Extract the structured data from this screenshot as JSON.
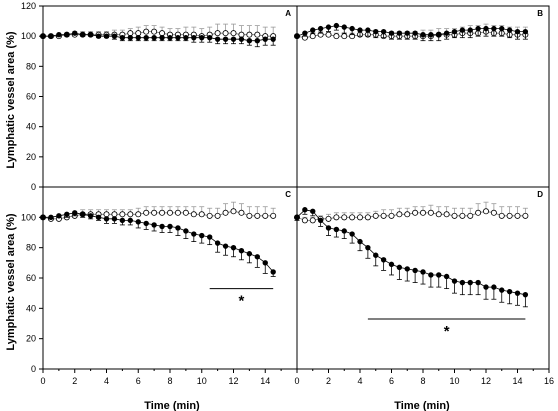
{
  "chart_data": [
    {
      "panel": "A",
      "type": "scatter",
      "ylabel": "Lymphatic vessel area (%)",
      "xlabel": "",
      "xlim": [
        0,
        16
      ],
      "ylim": [
        0,
        120
      ],
      "xticks": [],
      "yticks": [
        0,
        20,
        40,
        60,
        80,
        100,
        120
      ],
      "x": [
        0,
        0.5,
        1,
        1.5,
        2,
        2.5,
        3,
        3.5,
        4,
        4.5,
        5,
        5.5,
        6,
        6.5,
        7,
        7.5,
        8,
        8.5,
        9,
        9.5,
        10,
        10.5,
        11,
        11.5,
        12,
        12.5,
        13,
        13.5,
        14,
        14.5
      ],
      "series": [
        {
          "style": "filled",
          "values": [
            100,
            100,
            101,
            101,
            102,
            101,
            101,
            100,
            100,
            100,
            99,
            99,
            99,
            99,
            99,
            99,
            99,
            99,
            99,
            99,
            99,
            99,
            98,
            98,
            98,
            98,
            97,
            97,
            98,
            98
          ],
          "err": [
            1,
            1,
            1,
            1,
            1,
            1,
            1,
            1,
            1,
            2,
            2,
            2,
            2,
            2,
            2,
            2,
            2,
            2,
            2,
            3,
            3,
            3,
            3,
            3,
            3,
            3,
            3,
            4,
            4,
            4
          ]
        },
        {
          "style": "open",
          "values": [
            100,
            100,
            100,
            101,
            101,
            101,
            101,
            101,
            101,
            101,
            101,
            102,
            102,
            103,
            103,
            102,
            101,
            101,
            101,
            101,
            100,
            101,
            102,
            102,
            102,
            101,
            101,
            101,
            100,
            100
          ],
          "err": [
            1,
            1,
            1,
            1,
            2,
            2,
            2,
            2,
            2,
            3,
            3,
            3,
            4,
            4,
            4,
            4,
            4,
            4,
            5,
            5,
            5,
            5,
            6,
            6,
            6,
            6,
            6,
            6,
            6,
            6
          ]
        }
      ],
      "significance": null
    },
    {
      "panel": "B",
      "type": "scatter",
      "ylabel": "",
      "xlabel": "",
      "xlim": [
        0,
        16
      ],
      "ylim": [
        0,
        120
      ],
      "xticks": [],
      "yticks": [],
      "x": [
        0,
        0.5,
        1,
        1.5,
        2,
        2.5,
        3,
        3.5,
        4,
        4.5,
        5,
        5.5,
        6,
        6.5,
        7,
        7.5,
        8,
        8.5,
        9,
        9.5,
        10,
        10.5,
        11,
        11.5,
        12,
        12.5,
        13,
        13.5,
        14,
        14.5
      ],
      "series": [
        {
          "style": "filled",
          "values": [
            100,
            102,
            104,
            105,
            106,
            107,
            106,
            105,
            104,
            104,
            103,
            103,
            102,
            102,
            102,
            102,
            101,
            101,
            101,
            102,
            103,
            104,
            104,
            105,
            105,
            105,
            105,
            104,
            103,
            103
          ],
          "err": [
            1,
            2,
            2,
            3,
            3,
            3,
            4,
            4,
            4,
            4,
            4,
            4,
            4,
            4,
            4,
            4,
            4,
            4,
            4,
            4,
            4,
            5,
            5,
            5,
            5,
            5,
            5,
            5,
            5,
            5
          ]
        },
        {
          "style": "open",
          "values": [
            100,
            99,
            100,
            101,
            101,
            100,
            100,
            100,
            101,
            101,
            101,
            100,
            100,
            100,
            100,
            100,
            100,
            100,
            101,
            101,
            101,
            102,
            102,
            102,
            103,
            102,
            102,
            101,
            101,
            101
          ],
          "err": [
            1,
            1,
            2,
            2,
            2,
            2,
            2,
            2,
            3,
            3,
            3,
            3,
            3,
            3,
            3,
            3,
            4,
            4,
            4,
            4,
            4,
            4,
            5,
            5,
            5,
            5,
            5,
            5,
            5,
            5
          ]
        }
      ],
      "significance": null
    },
    {
      "panel": "C",
      "type": "scatter",
      "ylabel": "Lymphatic vessel area (%)",
      "xlabel": "Time (min)",
      "xlim": [
        0,
        16
      ],
      "ylim": [
        0,
        120
      ],
      "xticks": [
        0,
        2,
        4,
        6,
        8,
        10,
        12,
        14
      ],
      "yticks": [
        0,
        20,
        40,
        60,
        80,
        100
      ],
      "x": [
        0,
        0.5,
        1,
        1.5,
        2,
        2.5,
        3,
        3.5,
        4,
        4.5,
        5,
        5.5,
        6,
        6.5,
        7,
        7.5,
        8,
        8.5,
        9,
        9.5,
        10,
        10.5,
        11,
        11.5,
        12,
        12.5,
        13,
        13.5,
        14,
        14.5
      ],
      "series": [
        {
          "style": "filled",
          "values": [
            100,
            100,
            101,
            102,
            103,
            102,
            101,
            100,
            99,
            99,
            98,
            98,
            97,
            96,
            95,
            94,
            94,
            93,
            91,
            89,
            88,
            87,
            83,
            81,
            80,
            78,
            76,
            74,
            70,
            64
          ],
          "err": [
            1,
            1,
            1,
            2,
            2,
            2,
            2,
            2,
            3,
            3,
            3,
            3,
            4,
            4,
            4,
            4,
            4,
            5,
            5,
            5,
            5,
            5,
            6,
            6,
            6,
            6,
            6,
            7,
            7,
            3
          ]
        },
        {
          "style": "open",
          "values": [
            100,
            99,
            99,
            100,
            101,
            102,
            102,
            102,
            102,
            102,
            102,
            102,
            102,
            103,
            103,
            103,
            103,
            103,
            103,
            102,
            102,
            101,
            101,
            103,
            104,
            103,
            101,
            101,
            101,
            101
          ],
          "err": [
            1,
            1,
            2,
            2,
            2,
            3,
            3,
            3,
            3,
            3,
            3,
            3,
            4,
            4,
            4,
            4,
            4,
            4,
            4,
            5,
            5,
            5,
            5,
            6,
            6,
            6,
            6,
            6,
            6,
            5
          ]
        }
      ],
      "significance": {
        "label": "*",
        "x_from": 10.5,
        "x_to": 14.5,
        "y": 53
      }
    },
    {
      "panel": "D",
      "type": "scatter",
      "ylabel": "",
      "xlabel": "Time (min)",
      "xlim": [
        0,
        16
      ],
      "ylim": [
        0,
        120
      ],
      "xticks": [
        0,
        2,
        4,
        6,
        8,
        10,
        12,
        14,
        16
      ],
      "yticks": [],
      "x": [
        0,
        0.5,
        1,
        1.5,
        2,
        2.5,
        3,
        3.5,
        4,
        4.5,
        5,
        5.5,
        6,
        6.5,
        7,
        7.5,
        8,
        8.5,
        9,
        9.5,
        10,
        10.5,
        11,
        11.5,
        12,
        12.5,
        13,
        13.5,
        14,
        14.5
      ],
      "series": [
        {
          "style": "filled",
          "values": [
            100,
            105,
            104,
            98,
            93,
            92,
            91,
            89,
            84,
            80,
            75,
            72,
            69,
            67,
            66,
            65,
            64,
            62,
            62,
            61,
            58,
            57,
            57,
            57,
            54,
            54,
            52,
            51,
            50,
            49
          ],
          "err": [
            2,
            3,
            3,
            4,
            5,
            5,
            5,
            6,
            6,
            7,
            7,
            7,
            7,
            8,
            8,
            8,
            8,
            8,
            8,
            8,
            8,
            8,
            8,
            8,
            8,
            8,
            8,
            8,
            8,
            8
          ]
        },
        {
          "style": "open",
          "values": [
            100,
            98,
            98,
            99,
            99,
            100,
            100,
            100,
            100,
            100,
            101,
            101,
            101,
            102,
            102,
            103,
            103,
            103,
            102,
            102,
            101,
            101,
            101,
            103,
            104,
            103,
            101,
            101,
            101,
            101
          ],
          "err": [
            1,
            2,
            2,
            2,
            3,
            3,
            3,
            3,
            3,
            3,
            3,
            4,
            4,
            4,
            4,
            4,
            4,
            5,
            5,
            5,
            5,
            5,
            5,
            6,
            6,
            6,
            6,
            6,
            6,
            5
          ]
        }
      ],
      "significance": {
        "label": "*",
        "x_from": 4.5,
        "x_to": 14.5,
        "y": 33
      }
    }
  ]
}
